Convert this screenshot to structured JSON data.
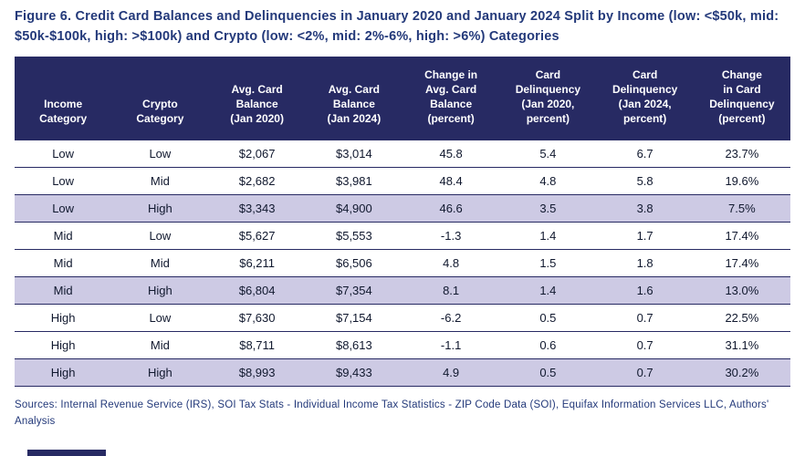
{
  "figure": {
    "title": "Figure 6. Credit Card Balances and Delinquencies in January 2020 and January 2024 Split by Income (low: <$50k, mid: $50k-$100k, high: >$100k) and Crypto (low: <2%, mid: 2%-6%, high: >6%) Categories",
    "sources": "Sources: Internal Revenue Service (IRS), SOI Tax Stats - Individual Income Tax Statistics - ZIP Code Data (SOI), Equifax Information Services LLC, Authors' Analysis"
  },
  "colors": {
    "header_bg": "#272a63",
    "row_highlight": "#cdcae4",
    "title_text": "#23397a",
    "body_text": "#10182e",
    "border": "#272a63"
  },
  "chart_data": {
    "type": "table",
    "title": "Credit Card Balances and Delinquencies in January 2020 and January 2024 Split by Income and Crypto Categories",
    "columns": [
      "Income\nCategory",
      "Crypto\nCategory",
      "Avg. Card\nBalance\n(Jan 2020)",
      "Avg. Card\nBalance\n(Jan 2024)",
      "Change in\nAvg. Card\nBalance\n(percent)",
      "Card\nDelinquency\n(Jan 2020,\npercent)",
      "Card\nDelinquency\n(Jan 2024,\npercent)",
      "Change\nin Card\nDelinquency\n(percent)"
    ],
    "rows": [
      {
        "highlighted": false,
        "cells": [
          "Low",
          "Low",
          "$2,067",
          "$3,014",
          "45.8",
          "5.4",
          "6.7",
          "23.7%"
        ]
      },
      {
        "highlighted": false,
        "cells": [
          "Low",
          "Mid",
          "$2,682",
          "$3,981",
          "48.4",
          "4.8",
          "5.8",
          "19.6%"
        ]
      },
      {
        "highlighted": true,
        "cells": [
          "Low",
          "High",
          "$3,343",
          "$4,900",
          "46.6",
          "3.5",
          "3.8",
          "7.5%"
        ]
      },
      {
        "highlighted": false,
        "cells": [
          "Mid",
          "Low",
          "$5,627",
          "$5,553",
          "-1.3",
          "1.4",
          "1.7",
          "17.4%"
        ]
      },
      {
        "highlighted": false,
        "cells": [
          "Mid",
          "Mid",
          "$6,211",
          "$6,506",
          "4.8",
          "1.5",
          "1.8",
          "17.4%"
        ]
      },
      {
        "highlighted": true,
        "cells": [
          "Mid",
          "High",
          "$6,804",
          "$7,354",
          "8.1",
          "1.4",
          "1.6",
          "13.0%"
        ]
      },
      {
        "highlighted": false,
        "cells": [
          "High",
          "Low",
          "$7,630",
          "$7,154",
          "-6.2",
          "0.5",
          "0.7",
          "22.5%"
        ]
      },
      {
        "highlighted": false,
        "cells": [
          "High",
          "Mid",
          "$8,711",
          "$8,613",
          "-1.1",
          "0.6",
          "0.7",
          "31.1%"
        ]
      },
      {
        "highlighted": true,
        "cells": [
          "High",
          "High",
          "$8,993",
          "$9,433",
          "4.9",
          "0.5",
          "0.7",
          "30.2%"
        ]
      }
    ]
  }
}
